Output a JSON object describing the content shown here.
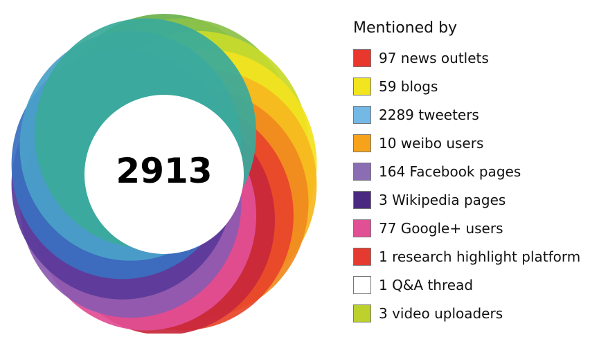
{
  "chart_data": {
    "type": "pie",
    "center_value": "2913",
    "legend_title": "Mentioned by",
    "categories": [
      {
        "label": "97 news outlets",
        "value": 97,
        "color": "#e8372d"
      },
      {
        "label": "59 blogs",
        "value": 59,
        "color": "#f2e520"
      },
      {
        "label": "2289 tweeters",
        "value": 2289,
        "color": "#74b8e6"
      },
      {
        "label": "10 weibo users",
        "value": 10,
        "color": "#f7a21b"
      },
      {
        "label": "164 Facebook pages",
        "value": 164,
        "color": "#8a6db3"
      },
      {
        "label": "3 Wikipedia pages",
        "value": 3,
        "color": "#4a2a80"
      },
      {
        "label": "77 Google+ users",
        "value": 77,
        "color": "#e14f95"
      },
      {
        "label": "1 research highlight platform",
        "value": 1,
        "color": "#e53a2f"
      },
      {
        "label": "1 Q&A thread",
        "value": 1,
        "color": "#ffffff"
      },
      {
        "label": "3 video uploaders",
        "value": 3,
        "color": "#bcd12c"
      }
    ]
  },
  "donut_palette": [
    "#6ab04c",
    "#8bc24a",
    "#c8da2c",
    "#f2e21f",
    "#f6b81f",
    "#f08a1f",
    "#e8452a",
    "#c8283a",
    "#e14f95",
    "#8c5ab0",
    "#5b3a9a",
    "#3a6fc0",
    "#4aa0c8",
    "#3aaa9a"
  ]
}
